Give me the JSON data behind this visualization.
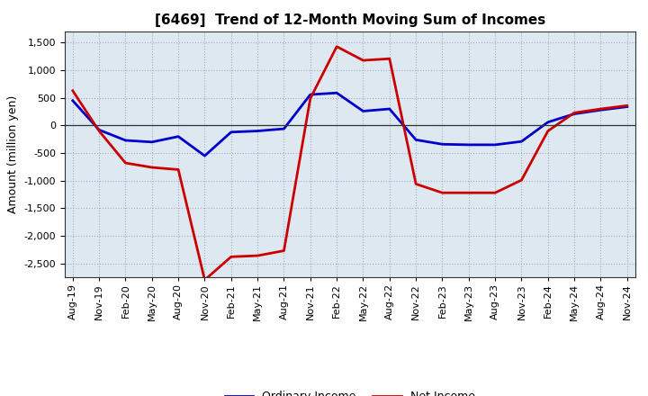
{
  "title": "[6469]  Trend of 12-Month Moving Sum of Incomes",
  "ylabel": "Amount (million yen)",
  "background_color": "#ffffff",
  "plot_bg_color": "#dde8f0",
  "grid_color": "#aaaacc",
  "x_labels": [
    "Aug-19",
    "Nov-19",
    "Feb-20",
    "May-20",
    "Aug-20",
    "Nov-20",
    "Feb-21",
    "May-21",
    "Aug-21",
    "Nov-21",
    "Feb-22",
    "May-22",
    "Aug-22",
    "Nov-22",
    "Feb-23",
    "May-23",
    "Aug-23",
    "Nov-23",
    "Feb-24",
    "May-24",
    "Aug-24",
    "Nov-24"
  ],
  "ordinary_income": [
    450,
    -80,
    -270,
    -300,
    -200,
    -550,
    -120,
    -100,
    -60,
    560,
    590,
    260,
    300,
    -260,
    -340,
    -350,
    -350,
    -290,
    60,
    210,
    280,
    340
  ],
  "net_income": [
    630,
    -100,
    -680,
    -760,
    -800,
    -2800,
    -2380,
    -2360,
    -2270,
    490,
    1430,
    1180,
    1210,
    -1060,
    -1220,
    -1220,
    -1220,
    -990,
    -100,
    230,
    300,
    360
  ],
  "ordinary_income_color": "#0000cc",
  "net_income_color": "#cc0000",
  "ylim_min": -2750,
  "ylim_max": 1700,
  "yticks": [
    -2500,
    -2000,
    -1500,
    -1000,
    -500,
    0,
    500,
    1000,
    1500
  ],
  "line_width": 2.0,
  "legend_ordinary": "Ordinary Income",
  "legend_net": "Net Income",
  "title_fontsize": 11,
  "axis_fontsize": 8,
  "ylabel_fontsize": 9
}
